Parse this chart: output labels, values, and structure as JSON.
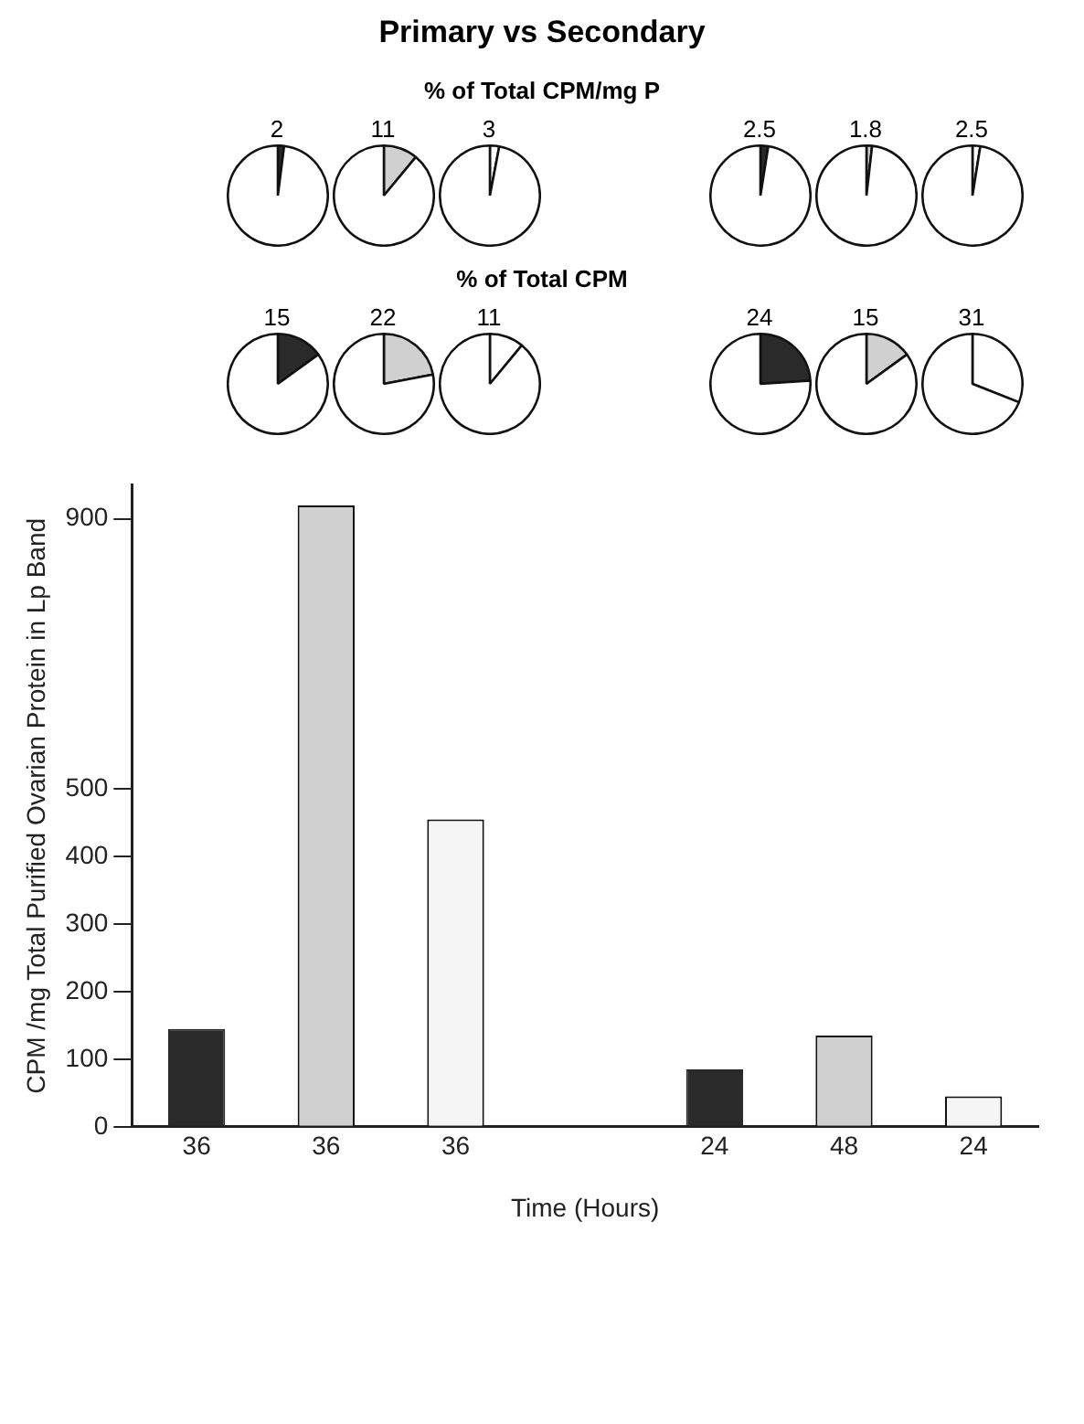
{
  "chart_data": [
    {
      "type": "other",
      "title": "Primary vs Secondary"
    },
    {
      "type": "other",
      "title": "% of Total CPM/mg P"
    },
    {
      "type": "pie",
      "categories": [
        null,
        null
      ],
      "values": [
        2,
        98
      ],
      "colors": [
        "#2a2a2a",
        "#ffffff"
      ],
      "value_labels": [
        "2",
        null
      ]
    },
    {
      "type": "pie",
      "categories": [
        null,
        null
      ],
      "values": [
        11,
        89
      ],
      "colors": [
        "#d0d0d0",
        "#ffffff"
      ],
      "value_labels": [
        "11",
        null
      ]
    },
    {
      "type": "pie",
      "categories": [
        null,
        null
      ],
      "values": [
        3,
        97
      ],
      "colors": [
        "#ffffff",
        "#ffffff"
      ],
      "value_labels": [
        "3",
        null
      ]
    },
    {
      "type": "pie",
      "categories": [
        null,
        null
      ],
      "values": [
        2.5,
        97.5
      ],
      "colors": [
        "#2a2a2a",
        "#ffffff"
      ],
      "value_labels": [
        "2.5",
        null
      ]
    },
    {
      "type": "pie",
      "categories": [
        null,
        null
      ],
      "values": [
        1.8,
        98.2
      ],
      "colors": [
        "#d0d0d0",
        "#ffffff"
      ],
      "value_labels": [
        "1.8",
        null
      ]
    },
    {
      "type": "pie",
      "categories": [
        null,
        null
      ],
      "values": [
        2.5,
        97.5
      ],
      "colors": [
        "#ffffff",
        "#ffffff"
      ],
      "value_labels": [
        "2.5",
        null
      ]
    },
    {
      "type": "other",
      "title": "% of Total CPM"
    },
    {
      "type": "pie",
      "categories": [
        null,
        null
      ],
      "values": [
        15,
        85
      ],
      "colors": [
        "#2a2a2a",
        "#ffffff"
      ],
      "value_labels": [
        "15",
        null
      ]
    },
    {
      "type": "pie",
      "categories": [
        null,
        null
      ],
      "values": [
        22,
        78
      ],
      "colors": [
        "#d0d0d0",
        "#ffffff"
      ],
      "value_labels": [
        "22",
        null
      ]
    },
    {
      "type": "pie",
      "categories": [
        null,
        null
      ],
      "values": [
        11,
        89
      ],
      "colors": [
        "#ffffff",
        "#ffffff"
      ],
      "value_labels": [
        "11",
        null
      ]
    },
    {
      "type": "pie",
      "categories": [
        null,
        null
      ],
      "values": [
        24,
        76
      ],
      "colors": [
        "#2a2a2a",
        "#ffffff"
      ],
      "value_labels": [
        "24",
        null
      ]
    },
    {
      "type": "pie",
      "categories": [
        null,
        null
      ],
      "values": [
        15,
        85
      ],
      "colors": [
        "#d0d0d0",
        "#ffffff"
      ],
      "value_labels": [
        "15",
        null
      ]
    },
    {
      "type": "pie",
      "categories": [
        null,
        null
      ],
      "values": [
        31,
        69
      ],
      "colors": [
        "#ffffff",
        "#ffffff"
      ],
      "value_labels": [
        "31",
        null
      ]
    },
    {
      "type": "bar",
      "xlabel": "Time (Hours)",
      "ylabel": "CPM /mg Total Purified Ovarian Protein in Lp Band",
      "categories": [
        "36",
        "36",
        "36",
        null,
        "24",
        "48",
        "24"
      ],
      "values": [
        145,
        920,
        455,
        null,
        85,
        135,
        45
      ],
      "colors": [
        "#2a2a2a",
        "#d0d0d0",
        "#f5f5f5",
        "#f5f5f5",
        "#2a2a2a",
        "#d0d0d0",
        "#f5f5f5"
      ],
      "ylim": [
        0,
        950
      ],
      "yticks": [
        0,
        100,
        200,
        300,
        400,
        500,
        900
      ],
      "grid": false
    }
  ]
}
